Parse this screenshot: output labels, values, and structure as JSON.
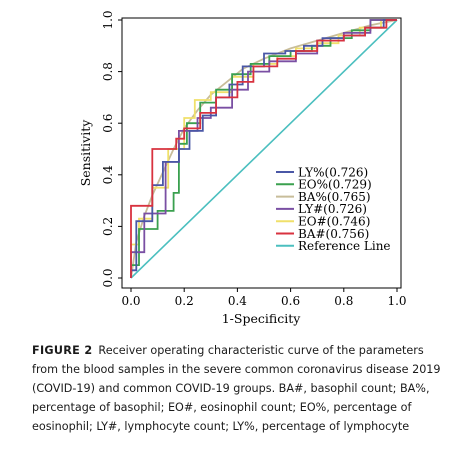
{
  "chart_data": {
    "type": "line",
    "title": "",
    "xlabel": "1-Specificity",
    "ylabel": "Sensitivity",
    "xlim": [
      0,
      1
    ],
    "ylim": [
      0,
      1
    ],
    "x_ticks": [
      "0.0",
      "0.2",
      "0.4",
      "0.6",
      "0.8",
      "1.0"
    ],
    "y_ticks": [
      "0.0",
      "0.2",
      "0.4",
      "0.6",
      "0.8",
      "1.0"
    ],
    "grid": false,
    "legend_position": "bottom-right",
    "series": [
      {
        "name": "LY%(0.726)",
        "color": "#4a57a6",
        "x": [
          0,
          0,
          0.02,
          0.02,
          0.08,
          0.08,
          0.12,
          0.12,
          0.18,
          0.18,
          0.22,
          0.22,
          0.27,
          0.27,
          0.32,
          0.32,
          0.37,
          0.37,
          0.42,
          0.42,
          0.5,
          0.5,
          0.58,
          0.58,
          0.65,
          0.65,
          0.72,
          0.72,
          0.8,
          0.8,
          0.88,
          0.88,
          0.95,
          0.95,
          1
        ],
        "y": [
          0,
          0.03,
          0.03,
          0.22,
          0.22,
          0.36,
          0.36,
          0.45,
          0.45,
          0.5,
          0.5,
          0.57,
          0.57,
          0.63,
          0.63,
          0.7,
          0.7,
          0.75,
          0.75,
          0.82,
          0.82,
          0.87,
          0.87,
          0.88,
          0.88,
          0.9,
          0.9,
          0.93,
          0.93,
          0.94,
          0.94,
          0.97,
          0.97,
          1,
          1
        ]
      },
      {
        "name": "EO%(0.729)",
        "color": "#3aa04f",
        "x": [
          0,
          0,
          0.03,
          0.03,
          0.1,
          0.1,
          0.16,
          0.16,
          0.18,
          0.18,
          0.21,
          0.21,
          0.26,
          0.26,
          0.32,
          0.32,
          0.38,
          0.38,
          0.45,
          0.45,
          0.52,
          0.52,
          0.6,
          0.6,
          0.68,
          0.68,
          0.75,
          0.75,
          0.83,
          0.83,
          0.9,
          0.9,
          1
        ],
        "y": [
          0,
          0.05,
          0.05,
          0.19,
          0.19,
          0.26,
          0.26,
          0.33,
          0.33,
          0.52,
          0.52,
          0.6,
          0.6,
          0.68,
          0.68,
          0.73,
          0.73,
          0.79,
          0.79,
          0.83,
          0.83,
          0.86,
          0.86,
          0.88,
          0.88,
          0.9,
          0.9,
          0.93,
          0.93,
          0.96,
          0.96,
          1,
          1
        ]
      },
      {
        "name": "BA%(0.765)",
        "color": "#c8bd9a",
        "x": [
          0,
          0.02,
          0.05,
          0.08,
          0.12,
          0.16,
          0.2,
          0.25,
          0.3,
          0.36,
          0.42,
          0.5,
          0.6,
          0.7,
          0.8,
          0.9,
          1
        ],
        "y": [
          0,
          0.14,
          0.24,
          0.32,
          0.41,
          0.5,
          0.58,
          0.65,
          0.71,
          0.76,
          0.81,
          0.85,
          0.89,
          0.92,
          0.95,
          0.98,
          1
        ]
      },
      {
        "name": "LY#(0.726)",
        "color": "#7a4fa3",
        "x": [
          0,
          0,
          0.05,
          0.05,
          0.13,
          0.13,
          0.18,
          0.18,
          0.25,
          0.25,
          0.3,
          0.3,
          0.38,
          0.38,
          0.44,
          0.44,
          0.52,
          0.52,
          0.62,
          0.62,
          0.7,
          0.7,
          0.8,
          0.8,
          0.9,
          0.9,
          1
        ],
        "y": [
          0,
          0.1,
          0.1,
          0.25,
          0.25,
          0.45,
          0.45,
          0.57,
          0.57,
          0.62,
          0.62,
          0.66,
          0.66,
          0.73,
          0.73,
          0.8,
          0.8,
          0.84,
          0.84,
          0.87,
          0.87,
          0.92,
          0.92,
          0.95,
          0.95,
          1,
          1
        ]
      },
      {
        "name": "EO#(0.746)",
        "color": "#f0e06a",
        "x": [
          0,
          0,
          0.03,
          0.03,
          0.08,
          0.08,
          0.14,
          0.14,
          0.2,
          0.2,
          0.24,
          0.24,
          0.3,
          0.3,
          0.38,
          0.38,
          0.46,
          0.46,
          0.55,
          0.55,
          0.62,
          0.62,
          0.7,
          0.7,
          0.78,
          0.78,
          0.86,
          0.86,
          0.94,
          0.94,
          1
        ],
        "y": [
          0,
          0.13,
          0.13,
          0.23,
          0.23,
          0.35,
          0.35,
          0.5,
          0.5,
          0.62,
          0.62,
          0.69,
          0.69,
          0.72,
          0.72,
          0.78,
          0.78,
          0.83,
          0.83,
          0.86,
          0.86,
          0.89,
          0.89,
          0.91,
          0.91,
          0.94,
          0.94,
          0.97,
          0.97,
          1,
          1
        ]
      },
      {
        "name": "BA#(0.756)",
        "color": "#d8323f",
        "x": [
          0,
          0,
          0.08,
          0.08,
          0.17,
          0.17,
          0.2,
          0.2,
          0.26,
          0.26,
          0.32,
          0.32,
          0.4,
          0.4,
          0.46,
          0.46,
          0.55,
          0.55,
          0.62,
          0.62,
          0.7,
          0.7,
          0.8,
          0.8,
          0.88,
          0.88,
          0.96,
          0.96,
          1
        ],
        "y": [
          0,
          0.28,
          0.28,
          0.5,
          0.5,
          0.54,
          0.54,
          0.58,
          0.58,
          0.64,
          0.64,
          0.7,
          0.7,
          0.76,
          0.76,
          0.82,
          0.82,
          0.85,
          0.85,
          0.88,
          0.88,
          0.92,
          0.92,
          0.94,
          0.94,
          0.97,
          0.97,
          1,
          1
        ]
      },
      {
        "name": "Reference Line",
        "color": "#4bbfbf",
        "x": [
          0,
          1
        ],
        "y": [
          0,
          1
        ]
      }
    ]
  },
  "caption": {
    "label": "FIGURE 2",
    "text": "Receiver operating characteristic curve of the parameters from the blood samples in the severe common coronavirus disease 2019 (COVID-19) and common COVID-19 groups. BA#, basophil count; BA%, percentage of basophil; EO#, eosinophil count; EO%, percentage of eosinophil; LY#, lymphocyte count; LY%, percentage of lymphocyte"
  }
}
